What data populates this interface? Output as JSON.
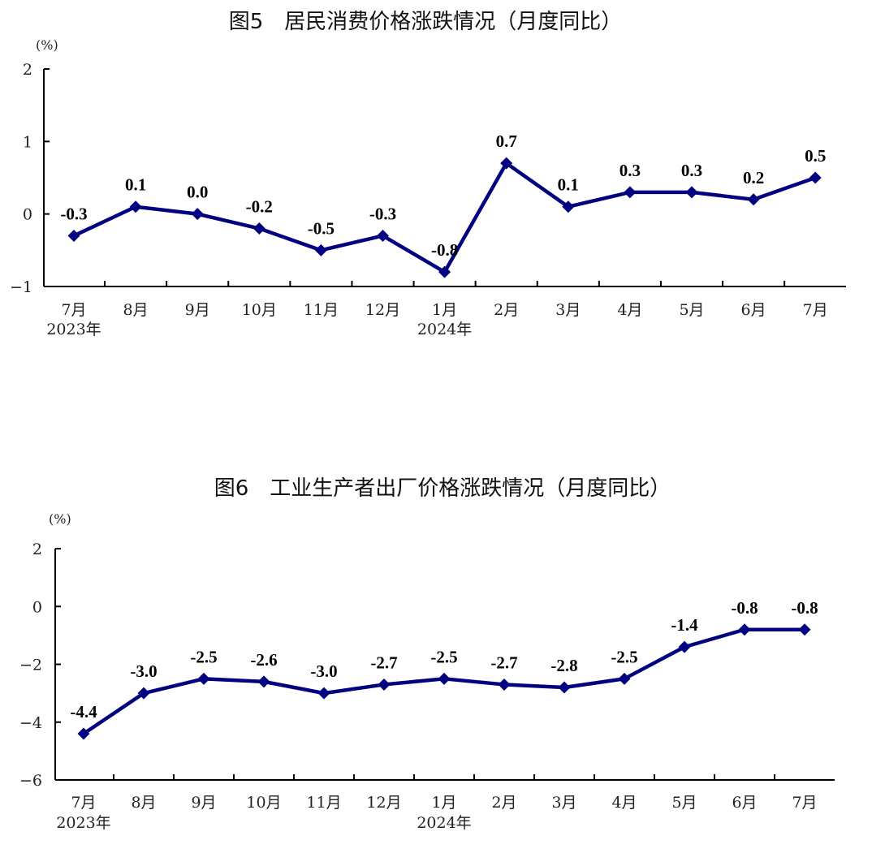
{
  "colors": {
    "series": "#000080",
    "axis": "#000000",
    "text": "#111111"
  },
  "chart_data": [
    {
      "type": "line",
      "title": "图5　居民消费价格涨跌情况（月度同比）",
      "unit": "(%)",
      "categories": [
        "7月",
        "8月",
        "9月",
        "10月",
        "11月",
        "12月",
        "1月",
        "2月",
        "3月",
        "4月",
        "5月",
        "6月",
        "7月"
      ],
      "year_labels": [
        "2023年",
        "",
        "",
        "",
        "",
        "",
        "2024年",
        "",
        "",
        "",
        "",
        "",
        ""
      ],
      "values": [
        -0.3,
        0.1,
        0.0,
        -0.2,
        -0.5,
        -0.3,
        -0.8,
        0.7,
        0.1,
        0.3,
        0.3,
        0.2,
        0.5
      ],
      "data_labels": [
        "-0.3",
        "0.1",
        "0.0",
        "-0.2",
        "-0.5",
        "-0.3",
        "-0.8",
        "0.7",
        "0.1",
        "0.3",
        "0.3",
        "0.2",
        "0.5"
      ],
      "ylim": [
        -1,
        2
      ],
      "yticks": [
        2,
        1,
        0,
        -1
      ],
      "ytick_labels": [
        "2",
        "1",
        "0",
        "−1"
      ],
      "marker": "diamond",
      "grid": false
    },
    {
      "type": "line",
      "title": "图6　工业生产者出厂价格涨跌情况（月度同比）",
      "unit": "(%)",
      "categories": [
        "7月",
        "8月",
        "9月",
        "10月",
        "11月",
        "12月",
        "1月",
        "2月",
        "3月",
        "4月",
        "5月",
        "6月",
        "7月"
      ],
      "year_labels": [
        "2023年",
        "",
        "",
        "",
        "",
        "",
        "2024年",
        "",
        "",
        "",
        "",
        "",
        ""
      ],
      "values": [
        -4.4,
        -3.0,
        -2.5,
        -2.6,
        -3.0,
        -2.7,
        -2.5,
        -2.7,
        -2.8,
        -2.5,
        -1.4,
        -0.8,
        -0.8
      ],
      "data_labels": [
        "-4.4",
        "-3.0",
        "-2.5",
        "-2.6",
        "-3.0",
        "-2.7",
        "-2.5",
        "-2.7",
        "-2.8",
        "-2.5",
        "-1.4",
        "-0.8",
        "-0.8"
      ],
      "ylim": [
        -6,
        2
      ],
      "yticks": [
        2,
        0,
        -2,
        -4,
        -6
      ],
      "ytick_labels": [
        "2",
        "0",
        "−2",
        "−4",
        "−6"
      ],
      "marker": "diamond",
      "grid": false
    }
  ]
}
